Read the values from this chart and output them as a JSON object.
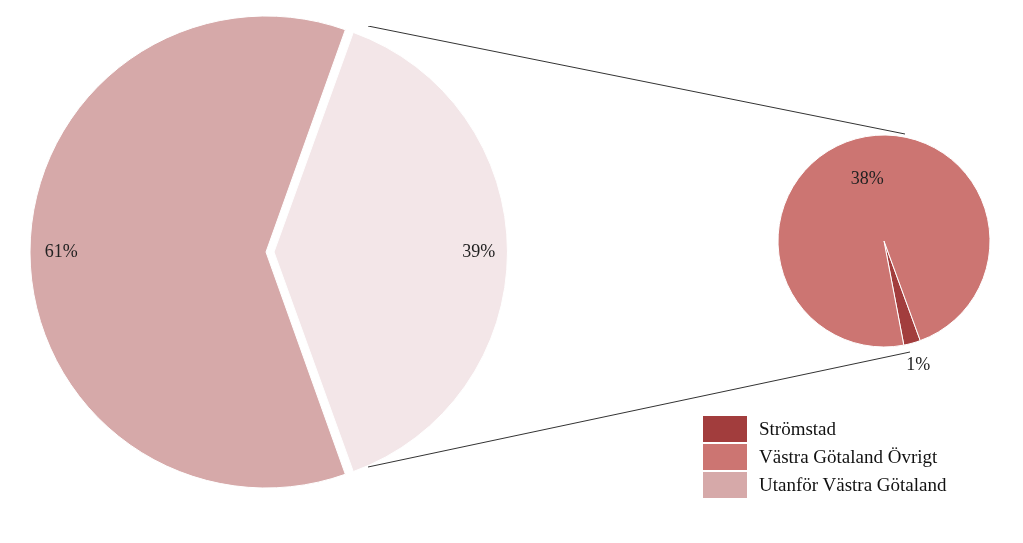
{
  "chart_data": [
    {
      "type": "pie",
      "categories": [
        "Utanför Västra Götaland",
        null
      ],
      "values": [
        61,
        39
      ],
      "colors": [
        "#d6a9a9",
        "#f3e6e8"
      ],
      "value_labels": [
        "61%",
        "39%"
      ],
      "legend": "bottom right"
    },
    {
      "type": "pie",
      "categories": [
        "Strömstad",
        "Västra Götaland Övrigt"
      ],
      "values": [
        1,
        38
      ],
      "colors": [
        "#a23d3d",
        "#cc7572"
      ],
      "value_labels": [
        "1%",
        "38%"
      ],
      "legend": "bottom"
    }
  ]
}
